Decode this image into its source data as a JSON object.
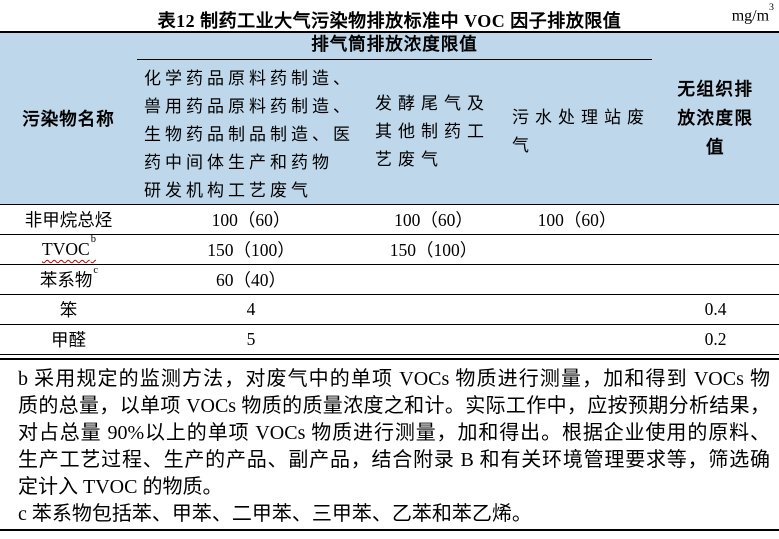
{
  "title": "表12 制药工业大气污染物排放标准中 VOC 因子排放限值",
  "unit": {
    "base": "mg/m",
    "sup": "3"
  },
  "colors": {
    "header_bg": "#bed7ea",
    "rule": "#000000",
    "squiggle": "#bf0000"
  },
  "table": {
    "columns": {
      "col1": {
        "label": "污染物名称"
      },
      "group": {
        "label": "排气筒排放浓度限值"
      },
      "sub1": {
        "lines": [
          "化学药品原料药制造、",
          "兽用药品原料药制造、",
          "生物药品制品制造、医",
          "药中间体生产和药物",
          "研发机构工艺废气"
        ]
      },
      "sub2": {
        "lines": [
          "发酵尾气及",
          "其他制药工",
          "艺废气"
        ]
      },
      "sub3": {
        "lines": [
          "污水处理站废",
          "气"
        ]
      },
      "col5": {
        "lines": [
          "无组织排",
          "放浓度限",
          "值"
        ]
      }
    },
    "rows": [
      {
        "name": "非甲烷总烃",
        "name_sup": "",
        "v1": "100（60）",
        "v2": "100（60）",
        "v3": "100（60）",
        "v4": ""
      },
      {
        "name": "TVOC",
        "name_sup": "b",
        "v1": "150（100）",
        "v2": "150（100）",
        "v3": "",
        "v4": ""
      },
      {
        "name": "苯系物",
        "name_sup": "c",
        "v1": "60（40）",
        "v2": "",
        "v3": "",
        "v4": ""
      },
      {
        "name": "笨",
        "name_sup": "",
        "v1": "4",
        "v2": "",
        "v3": "",
        "v4": "0.4"
      },
      {
        "name": "甲醛",
        "name_sup": "",
        "v1": "5",
        "v2": "",
        "v3": "",
        "v4": "0.2"
      }
    ]
  },
  "footnotes": {
    "lines": [
      "b 采用规定的监测方法，对废气中的单项 VOCs 物质进行测量，加和得到 VOCs 物",
      "质的总量，以单项 VOCs 物质的质量浓度之和计。实际工作中，应按预期分析结果，",
      "对占总量 90%以上的单项 VOCs 物质进行测量，加和得出。根据企业使用的原料、",
      "生产工艺过程、生产的产品、副产品，结合附录 B 和有关环境管理要求等，筛选确",
      "定计入 TVOC 的物质。",
      "c 苯系物包括苯、甲苯、二甲苯、三甲苯、乙苯和苯乙烯。"
    ]
  }
}
